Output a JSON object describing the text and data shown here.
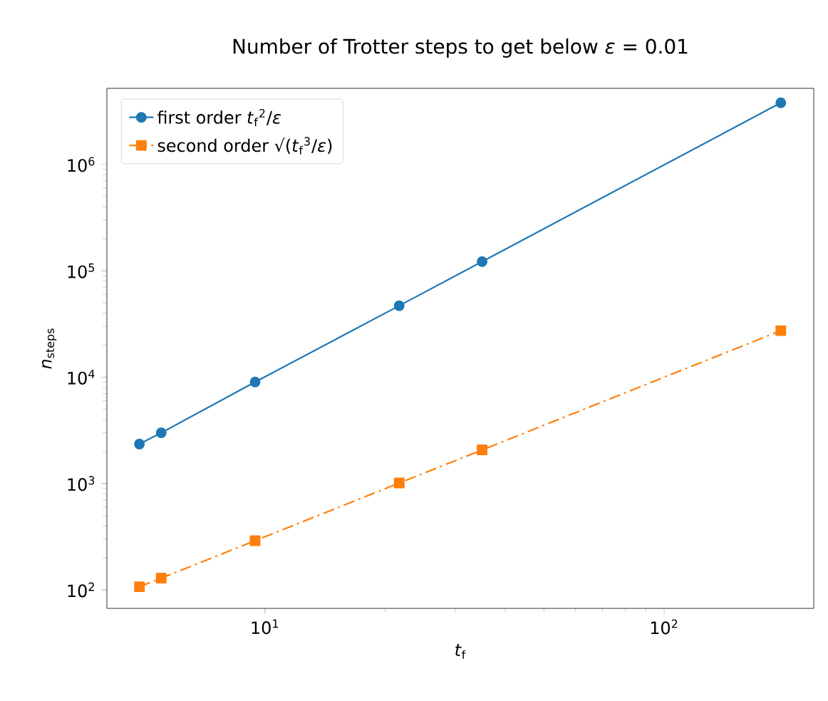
{
  "chart_data": {
    "type": "line",
    "title": "Number of Trotter steps to get below *ε* = 0.01",
    "xlabel": "*t*$_{f}$",
    "ylabel": "*n*$_{steps}$",
    "log": "xy",
    "legend": "top left",
    "grid": false,
    "xlim": [
      4.02,
      237
    ],
    "ylim": [
      67,
      5200000
    ],
    "xticks": [
      {
        "value": 10,
        "label": "10$^{1}$"
      },
      {
        "value": 100,
        "label": "10$^{2}$"
      }
    ],
    "yticks": [
      {
        "value": 100,
        "label": "10$^{2}$"
      },
      {
        "value": 1000,
        "label": "10$^{3}$"
      },
      {
        "value": 10000,
        "label": "10$^{4}$"
      },
      {
        "value": 100000,
        "label": "10$^{5}$"
      },
      {
        "value": 1000000,
        "label": "10$^{6}$"
      }
    ],
    "x": [
      4.85,
      5.5,
      9.45,
      21.7,
      35,
      196
    ],
    "series": [
      {
        "name": "first order *t*$_{f}$$^{2}$/*ε*",
        "color": "#1f77b4",
        "marker": "circle",
        "line_style": "solid",
        "values": [
          2350,
          3000,
          9000,
          47000,
          122000,
          3800000
        ]
      },
      {
        "name": "second order √(*t*$_{f}$$^{3}$/*ε*)",
        "color": "#ff7f0e",
        "marker": "square",
        "line_style": "dashdot",
        "values": [
          107,
          129,
          290,
          1010,
          2070,
          27400
        ]
      }
    ]
  }
}
